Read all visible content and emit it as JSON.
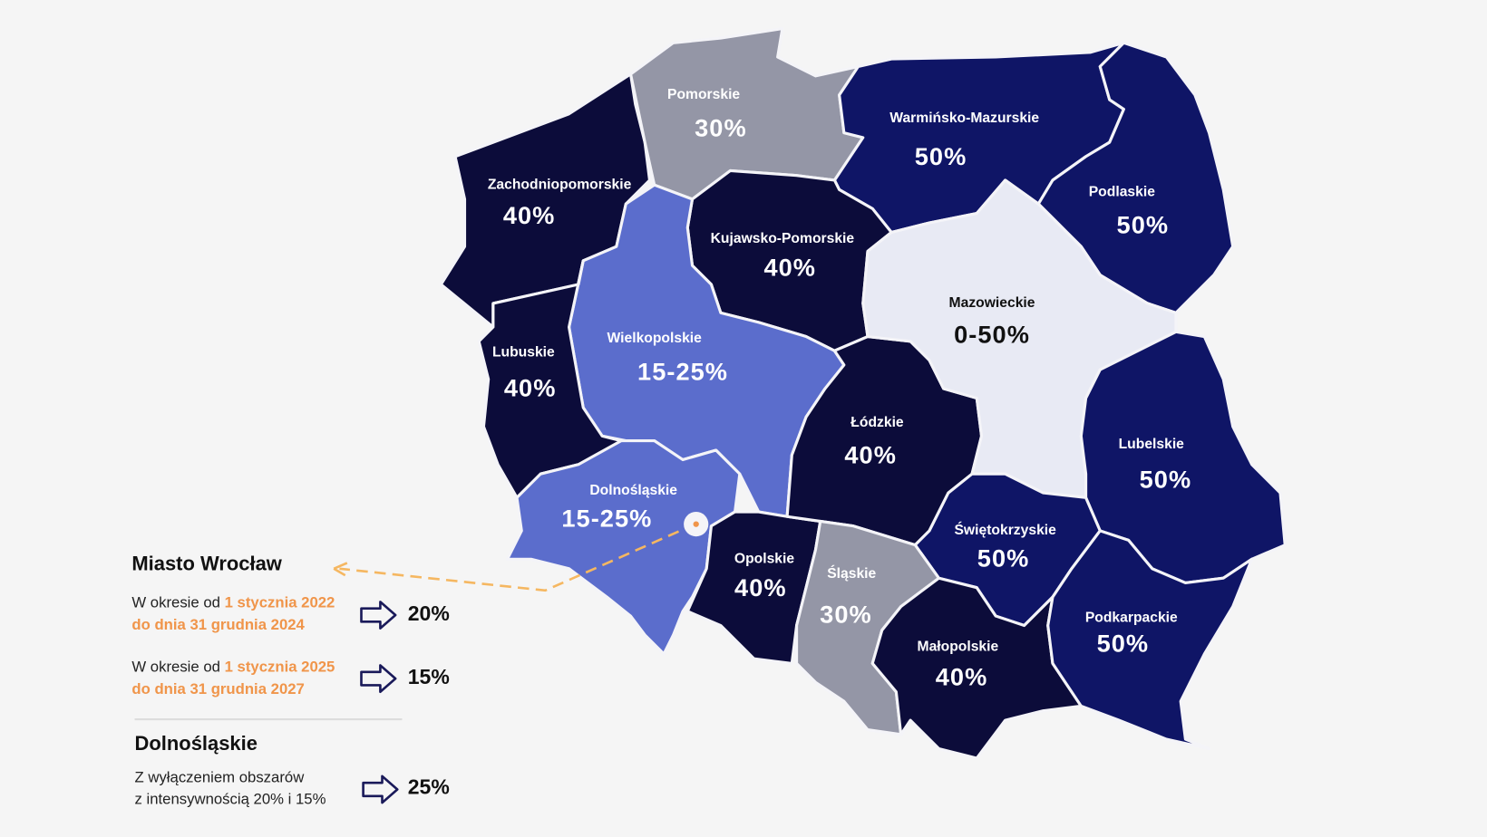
{
  "regions": [
    {
      "name": "Zachodniopomorskie",
      "value": "40%"
    },
    {
      "name": "Pomorskie",
      "value": "30%"
    },
    {
      "name": "Warmińsko-Mazurskie",
      "value": "50%"
    },
    {
      "name": "Podlaskie",
      "value": "50%"
    },
    {
      "name": "Kujawsko-Pomorskie",
      "value": "40%"
    },
    {
      "name": "Wielkopolskie",
      "value": "15-25%"
    },
    {
      "name": "Lubuskie",
      "value": "40%"
    },
    {
      "name": "Dolnośląskie",
      "value": "15-25%"
    },
    {
      "name": "Opolskie",
      "value": "40%"
    },
    {
      "name": "Łódzkie",
      "value": "40%"
    },
    {
      "name": "Mazowieckie",
      "value": "0-50%"
    },
    {
      "name": "Lubelskie",
      "value": "50%"
    },
    {
      "name": "Świętokrzyskie",
      "value": "50%"
    },
    {
      "name": "Śląskie",
      "value": "30%"
    },
    {
      "name": "Małopolskie",
      "value": "40%"
    },
    {
      "name": "Podkarpackie",
      "value": "50%"
    }
  ],
  "legend": {
    "city": {
      "title": "Miasto Wrocław",
      "periods": [
        {
          "prefix": "W okresie od ",
          "from": "1 stycznia 2022",
          "to": "do dnia 31 grudnia 2024",
          "value": "20%"
        },
        {
          "prefix": "W okresie od ",
          "from": "1 stycznia 2025",
          "to": "do dnia 31 grudnia 2027",
          "value": "15%"
        }
      ]
    },
    "region": {
      "title": "Dolnośląskie",
      "note_lines": [
        "Z wyłączeniem obszarów",
        "z intensywnością 20% i 15%"
      ],
      "value": "25%"
    }
  }
}
